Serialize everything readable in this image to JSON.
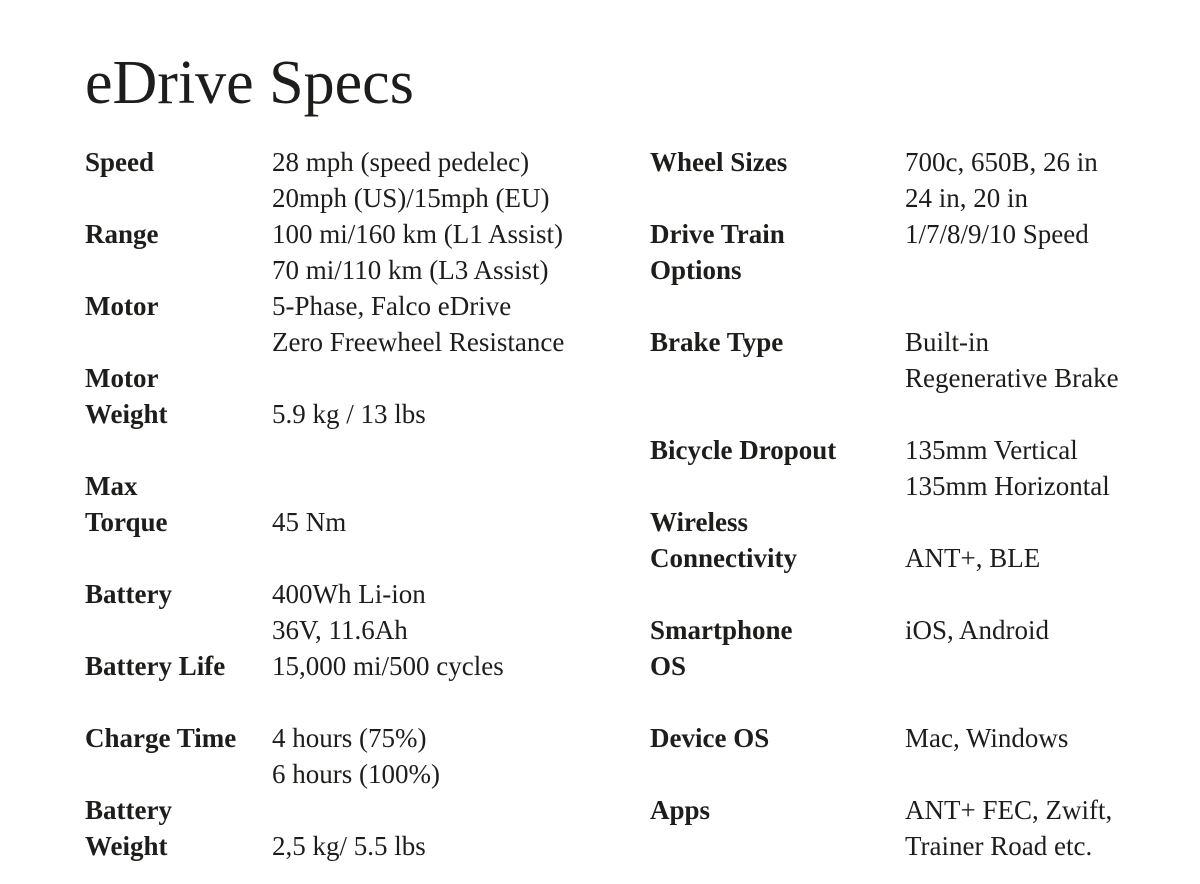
{
  "title": "eDrive Specs",
  "colors": {
    "text": "#1d1d1b",
    "background": "#ffffff"
  },
  "columns": {
    "left": {
      "rows": [
        {
          "label": "Speed",
          "value": "28 mph (speed pedelec)\n20mph (US)/15mph (EU)"
        },
        {
          "label": "Range",
          "value": "100 mi/160 km (L1 Assist)\n70 mi/110 km (L3 Assist)"
        },
        {
          "label": "Motor",
          "value": "5-Phase, Falco eDrive\nZero Freewheel Resistance"
        },
        {
          "label": "Motor\nWeight",
          "value": "5.9 kg / 13 lbs"
        },
        {
          "label": "Max\nTorque",
          "value": "45 Nm"
        },
        {
          "label": "Battery",
          "value": "400Wh Li-ion\n36V, 11.6Ah"
        },
        {
          "label": "Battery Life",
          "value": "15,000 mi/500 cycles"
        },
        {
          "label": "Charge Time",
          "value": "4 hours (75%)\n6 hours (100%)"
        },
        {
          "label": "Battery\nWeight",
          "value": "2,5 kg/ 5.5 lbs"
        }
      ]
    },
    "right": {
      "rows": [
        {
          "label": "Wheel Sizes",
          "value": "700c, 650B, 26 in\n24 in, 20 in"
        },
        {
          "label": "Drive Train\nOptions",
          "value": "1/7/8/9/10 Speed"
        },
        {
          "label": "Brake Type",
          "value": "Built-in\nRegenerative Brake"
        },
        {
          "label": "Bicycle Dropout",
          "value": "135mm Vertical\n135mm Horizontal"
        },
        {
          "label": "Wireless\nConnectivity",
          "value": "ANT+, BLE"
        },
        {
          "label": "Smartphone\nOS",
          "value": "iOS, Android"
        },
        {
          "label": "Device OS",
          "value": "Mac, Windows"
        },
        {
          "label": "Apps",
          "value": "ANT+ FEC, Zwift,\nTrainer Road etc."
        }
      ]
    }
  }
}
